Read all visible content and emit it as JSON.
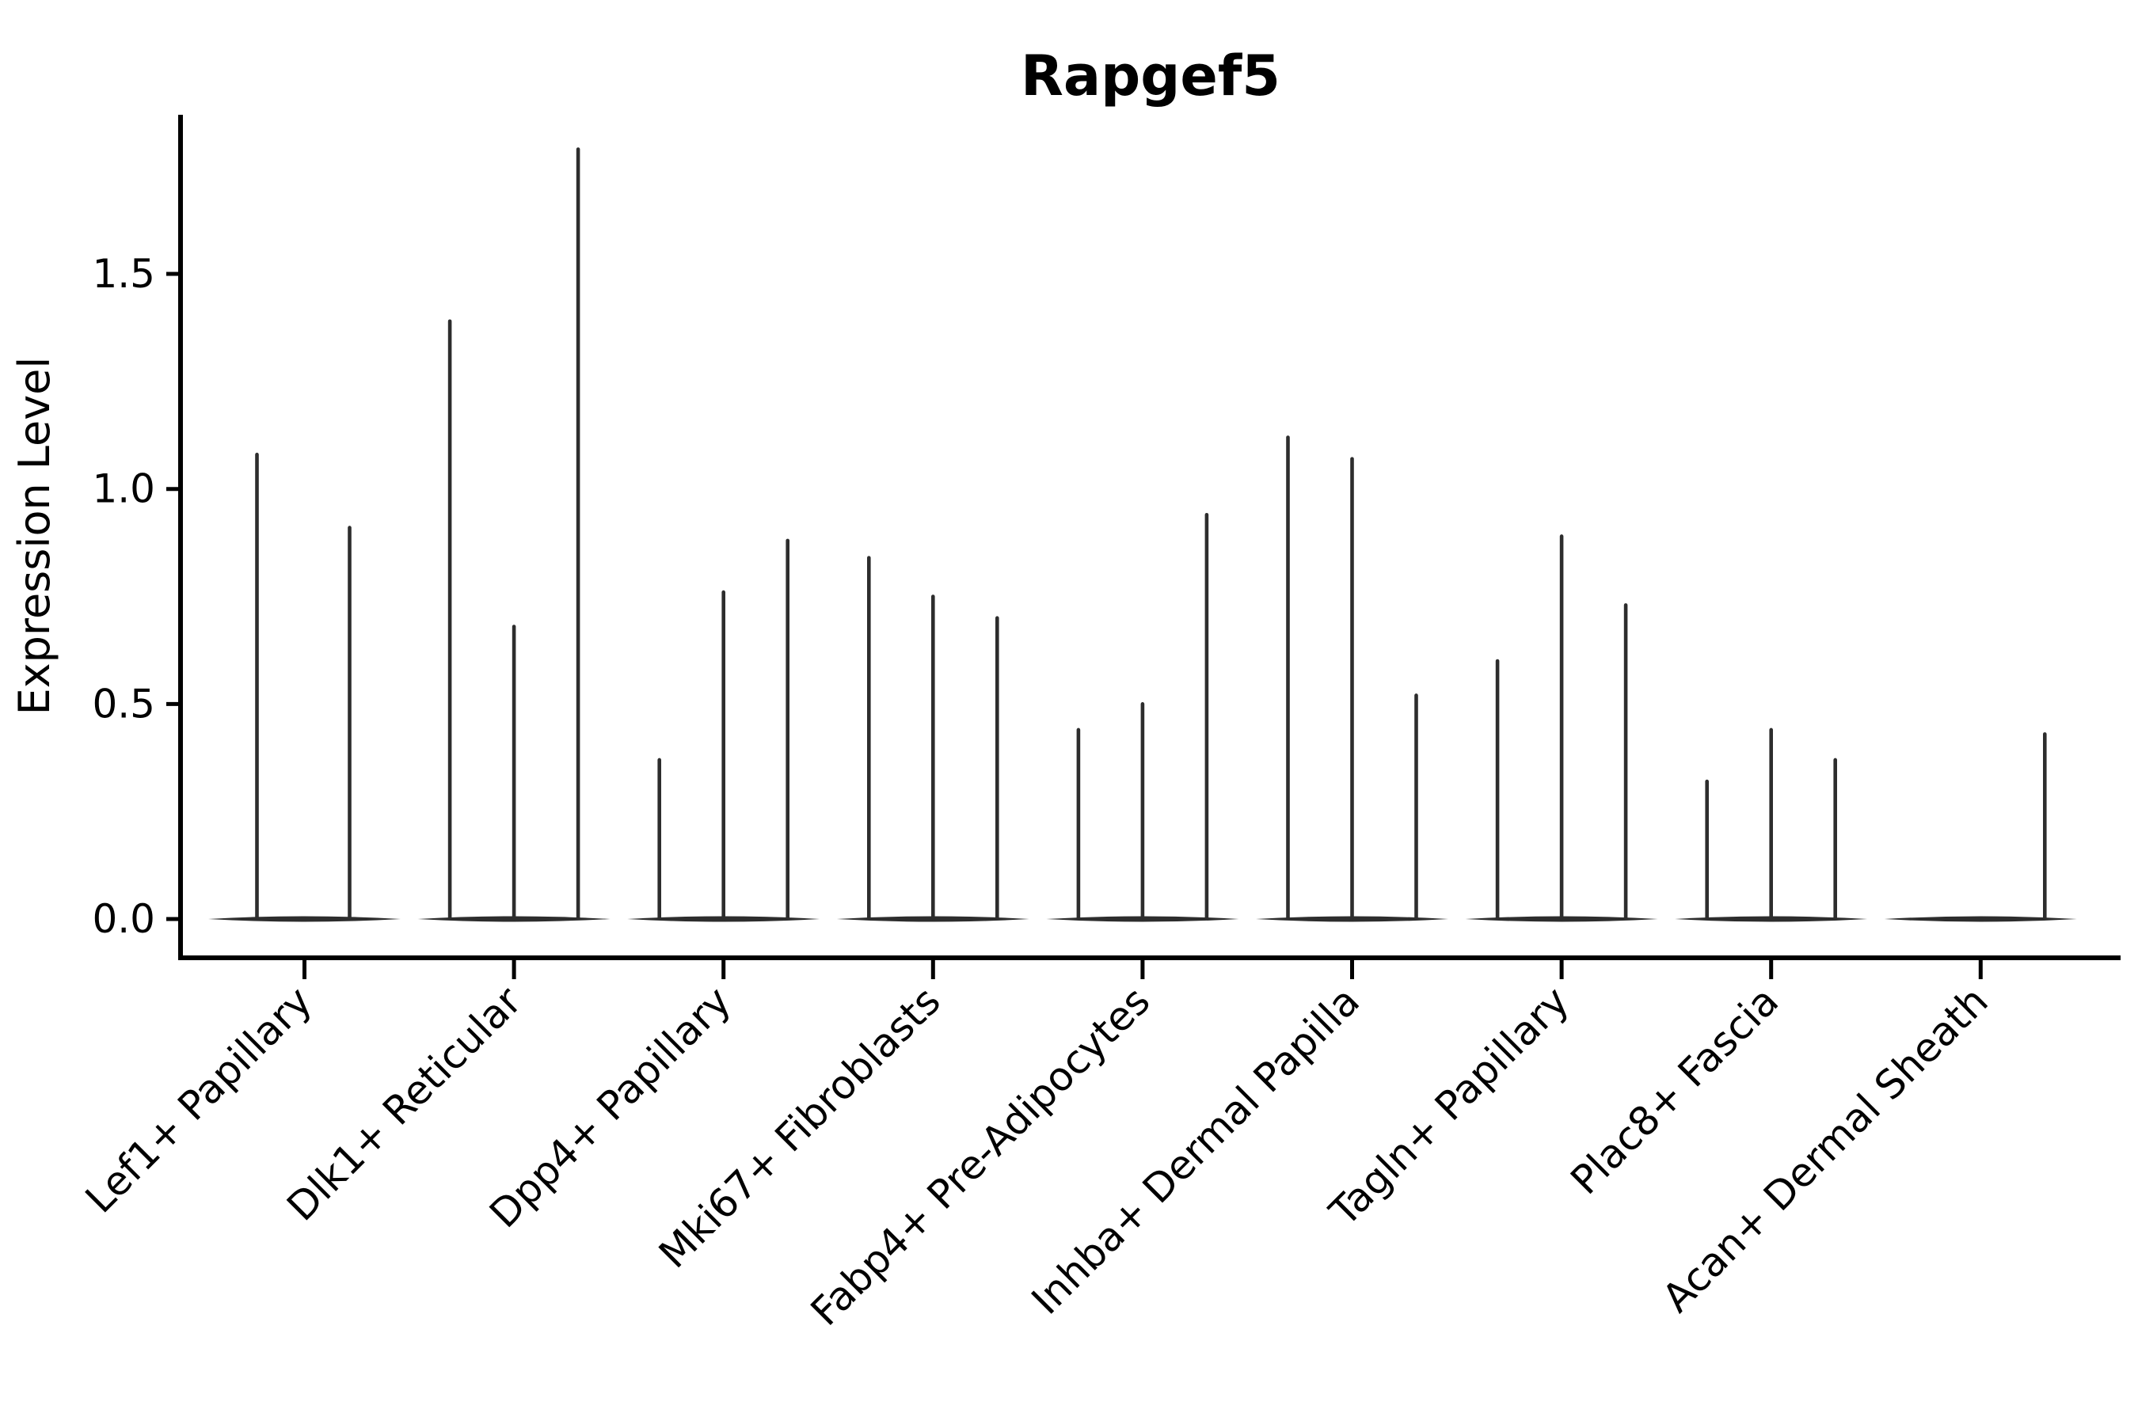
{
  "chart_data": {
    "type": "violin",
    "title": "Rapgef5",
    "xlabel": "",
    "ylabel": "Expression Level",
    "ylim": [
      -0.09,
      1.87
    ],
    "grid": false,
    "legend": null,
    "yticks": [
      {
        "value": 0.0,
        "label": "0.0"
      },
      {
        "value": 0.5,
        "label": "0.5"
      },
      {
        "value": 1.0,
        "label": "1.0"
      },
      {
        "value": 1.5,
        "label": "1.5"
      }
    ],
    "categories": [
      "Lef1+ Papillary",
      "Dlk1+ Reticular",
      "Dpp4+ Papillary",
      "Mki67+ Fibroblasts",
      "Fabp4+ Pre-Adipocytes",
      "Inhba+ Dermal Papilla",
      "Tagln+ Papillary",
      "Plac8+ Fascia",
      "Acan+ Dermal Sheath"
    ],
    "groups": [
      {
        "label": "Lef1+ Papillary",
        "violin_max": [
          1.08,
          0.91
        ]
      },
      {
        "label": "Dlk1+ Reticular",
        "violin_max": [
          1.39,
          0.68,
          1.79
        ]
      },
      {
        "label": "Dpp4+ Papillary",
        "violin_max": [
          0.37,
          0.76,
          0.88
        ]
      },
      {
        "label": "Mki67+ Fibroblasts",
        "violin_max": [
          0.84,
          0.75,
          0.7
        ]
      },
      {
        "label": "Fabp4+ Pre-Adipocytes",
        "violin_max": [
          0.44,
          0.5,
          0.94
        ]
      },
      {
        "label": "Inhba+ Dermal Papilla",
        "violin_max": [
          1.12,
          1.07,
          0.52
        ]
      },
      {
        "label": "Tagln+ Papillary",
        "violin_max": [
          0.6,
          0.89,
          0.73
        ]
      },
      {
        "label": "Plac8+ Fascia",
        "violin_max": [
          0.32,
          0.44,
          0.37
        ]
      },
      {
        "label": "Acan+ Dermal Sheath",
        "violin_max": [
          0.0,
          0.0,
          0.43
        ]
      }
    ],
    "colors": {
      "violin": "#2d2d2d",
      "axis": "#000000",
      "background": "#ffffff"
    }
  }
}
